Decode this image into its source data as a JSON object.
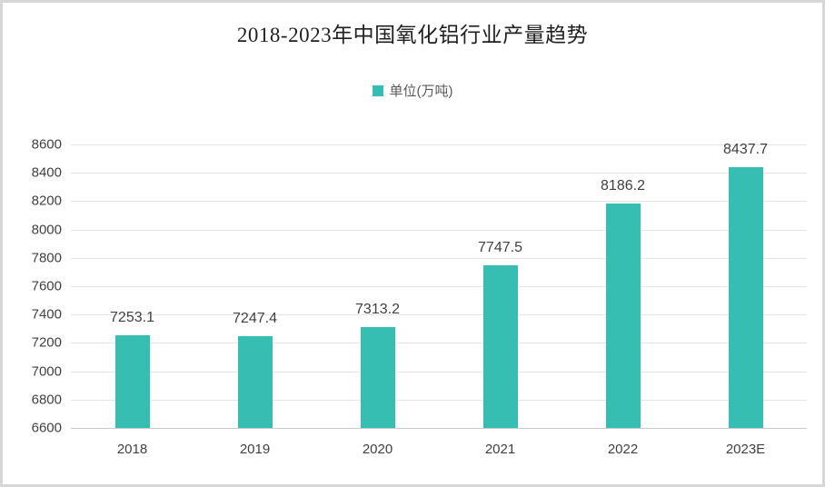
{
  "chart_data": {
    "type": "bar",
    "title": "2018-2023年中国氧化铝行业产量趋势",
    "legend": "单位(万吨)",
    "categories": [
      "2018",
      "2019",
      "2020",
      "2021",
      "2022",
      "2023E"
    ],
    "values": [
      7253.1,
      7247.4,
      7313.2,
      7747.5,
      8186.2,
      8437.7
    ],
    "value_labels": [
      "7253.1",
      "7247.4",
      "7313.2",
      "7747.5",
      "8186.2",
      "8437.7"
    ],
    "ylim": [
      6600,
      8600
    ],
    "ytick_step": 200,
    "yticks": [
      6600,
      6800,
      7000,
      7200,
      7400,
      7600,
      7800,
      8000,
      8200,
      8400,
      8600
    ],
    "xlabel": "",
    "ylabel": "",
    "grid": true,
    "legend_position": "top-center",
    "colors": {
      "bar": "#35beb1",
      "grid_line": "#e4e4e4",
      "axis_line": "#c9c9c9",
      "title_text": "#1f1f1f",
      "label_text": "#404040",
      "legend_text": "#595959",
      "frame_border": "#d6d6d6",
      "background": "#ffffff"
    }
  }
}
